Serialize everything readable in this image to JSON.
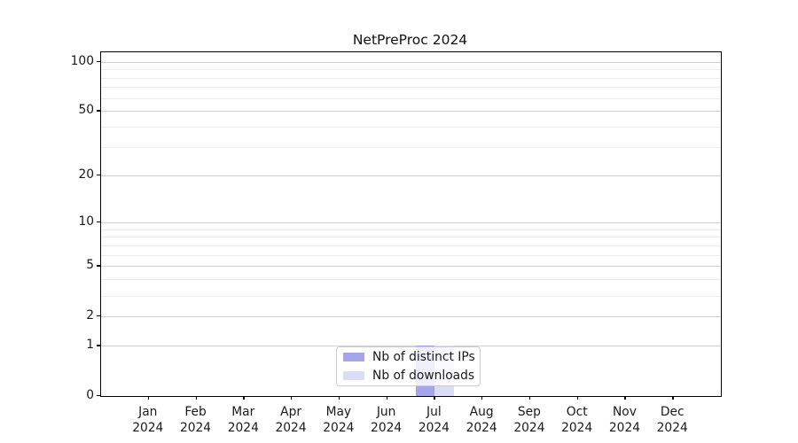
{
  "chart_data": {
    "type": "bar",
    "title": "NetPreProc 2024",
    "categories": [
      "Jan",
      "Feb",
      "Mar",
      "Apr",
      "May",
      "Jun",
      "Jul",
      "Aug",
      "Sep",
      "Oct",
      "Nov",
      "Dec"
    ],
    "category_year": "2024",
    "series": [
      {
        "name": "Nb of distinct IPs",
        "color": "#a5a5ea",
        "values": [
          0,
          0,
          0,
          0,
          0,
          0,
          1,
          0,
          0,
          0,
          0,
          0
        ]
      },
      {
        "name": "Nb of downloads",
        "color": "#dcdcf6",
        "values": [
          0,
          0,
          0,
          0,
          0,
          0,
          1,
          0,
          0,
          0,
          0,
          0
        ]
      }
    ],
    "xlabel": "",
    "ylabel": "",
    "y_axis": {
      "scale": "log1p",
      "ylim": [
        0,
        114
      ],
      "major_ticks": [
        0,
        1,
        2,
        5,
        10,
        20,
        50,
        100
      ],
      "minor_ticks": [
        3,
        4,
        6,
        7,
        8,
        9,
        30,
        40,
        60,
        70,
        80,
        90
      ]
    },
    "grid": true,
    "legend_position": "lower center"
  }
}
